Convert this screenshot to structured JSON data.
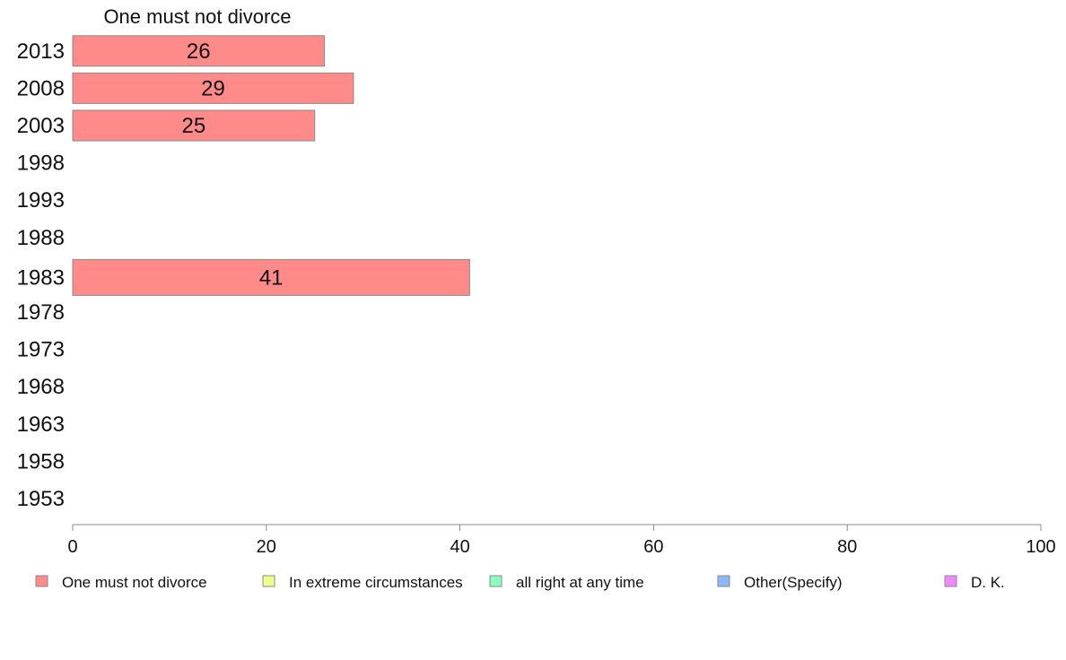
{
  "chart_data": {
    "type": "bar",
    "orientation": "horizontal",
    "title": "One must not divorce",
    "categories": [
      "2013",
      "2008",
      "2003",
      "1998",
      "1993",
      "1988",
      "1983",
      "1978",
      "1973",
      "1968",
      "1963",
      "1958",
      "1953"
    ],
    "series": [
      {
        "name": "One must not divorce",
        "values": [
          26,
          29,
          25,
          null,
          null,
          null,
          41,
          null,
          null,
          null,
          null,
          null,
          null
        ]
      }
    ],
    "xlim": [
      0,
      100
    ],
    "x_ticks": [
      "0",
      "20",
      "40",
      "60",
      "80",
      "100"
    ],
    "grid": false,
    "legend_position": "bottom",
    "legend": [
      {
        "label": "One must not divorce",
        "color": "#ff8a8a"
      },
      {
        "label": "In extreme circumstances",
        "color": "#eeff8a"
      },
      {
        "label": "all right at any time",
        "color": "#8affc0"
      },
      {
        "label": "Other(Specify)",
        "color": "#8ab8ff"
      },
      {
        "label": "D. K.",
        "color": "#ee8aff"
      }
    ],
    "colors": {
      "bar_fill": "#ff8a8a",
      "bar_stroke": "#8a8a8a",
      "axis": "#8a8a8a"
    }
  }
}
